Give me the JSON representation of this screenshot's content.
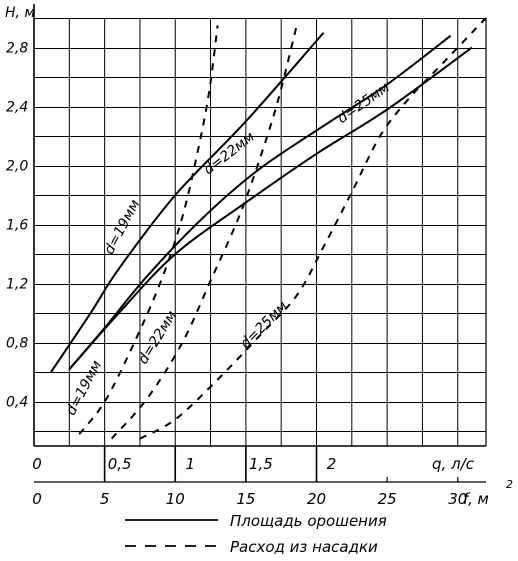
{
  "chart_data": {
    "type": "line",
    "ylabel": "H, м",
    "ylim": [
      0.1,
      3.0
    ],
    "yticks": [
      "0,4",
      "0,8",
      "1,2",
      "1,6",
      "2,0",
      "2,4",
      "2,8"
    ],
    "xlim_f": [
      0,
      32
    ],
    "f_axis": {
      "label": "f, м",
      "exponent": "2",
      "ticks": [
        "0",
        "5",
        "10",
        "15",
        "20",
        "25",
        "30"
      ]
    },
    "q_axis": {
      "label": "q, л/с",
      "ticks": [
        "0",
        "0,5",
        "1",
        "1,5",
        "2"
      ]
    },
    "grid": true,
    "legend": [
      {
        "label": "Площадь орошения",
        "style": "solid"
      },
      {
        "label": "Расход из насадки",
        "style": "dashed"
      }
    ],
    "series": [
      {
        "name": "d=19мм",
        "group": "area",
        "style": "solid",
        "points": [
          [
            1.2,
            0.6
          ],
          [
            4,
            1.0
          ],
          [
            6,
            1.3
          ],
          [
            10,
            1.8
          ],
          [
            15,
            2.3
          ],
          [
            20.5,
            2.9
          ]
        ]
      },
      {
        "name": "d=22мм",
        "group": "area",
        "style": "solid",
        "points": [
          [
            2.5,
            0.62
          ],
          [
            5,
            0.9
          ],
          [
            8,
            1.25
          ],
          [
            12,
            1.65
          ],
          [
            16,
            1.98
          ],
          [
            21,
            2.3
          ],
          [
            25,
            2.55
          ],
          [
            29.5,
            2.88
          ]
        ]
      },
      {
        "name": "d=25мм",
        "group": "area",
        "style": "solid",
        "points": [
          [
            2.5,
            0.62
          ],
          [
            6,
            1.0
          ],
          [
            10,
            1.4
          ],
          [
            15,
            1.75
          ],
          [
            20,
            2.08
          ],
          [
            25,
            2.38
          ],
          [
            31,
            2.8
          ]
        ]
      },
      {
        "name": "d=19мм",
        "group": "flow",
        "style": "dashed",
        "points": [
          [
            3.2,
            0.18
          ],
          [
            5,
            0.4
          ],
          [
            7,
            0.78
          ],
          [
            9,
            1.22
          ],
          [
            10.5,
            1.65
          ],
          [
            11.6,
            2.1
          ],
          [
            12.4,
            2.5
          ],
          [
            13,
            2.95
          ]
        ]
      },
      {
        "name": "d=22мм",
        "group": "flow",
        "style": "dashed",
        "points": [
          [
            5.5,
            0.15
          ],
          [
            8,
            0.42
          ],
          [
            10.5,
            0.8
          ],
          [
            12.5,
            1.22
          ],
          [
            14.5,
            1.65
          ],
          [
            16,
            2.05
          ],
          [
            17.3,
            2.45
          ],
          [
            18.6,
            2.95
          ]
        ]
      },
      {
        "name": "d=25мм",
        "group": "flow",
        "style": "dashed",
        "points": [
          [
            7.5,
            0.15
          ],
          [
            10,
            0.28
          ],
          [
            13,
            0.55
          ],
          [
            16,
            0.85
          ],
          [
            18.6,
            1.12
          ],
          [
            20.5,
            1.45
          ],
          [
            22.5,
            1.82
          ],
          [
            24.5,
            2.2
          ],
          [
            26.5,
            2.45
          ],
          [
            28.5,
            2.65
          ],
          [
            32,
            3.0
          ]
        ]
      }
    ],
    "curve_labels": [
      {
        "text": "d=19мм",
        "f": 6.5,
        "h": 1.57,
        "angle": -62
      },
      {
        "text": "d=22мм",
        "f": 14,
        "h": 2.06,
        "angle": -38
      },
      {
        "text": "d=25мм",
        "f": 23.5,
        "h": 2.4,
        "angle": -35
      },
      {
        "text": "d=19мм",
        "f": 3.8,
        "h": 0.48,
        "angle": -62
      },
      {
        "text": "d=22мм",
        "f": 9,
        "h": 0.82,
        "angle": -58
      },
      {
        "text": "d=25мм",
        "f": 16.5,
        "h": 0.9,
        "angle": -45
      }
    ]
  }
}
